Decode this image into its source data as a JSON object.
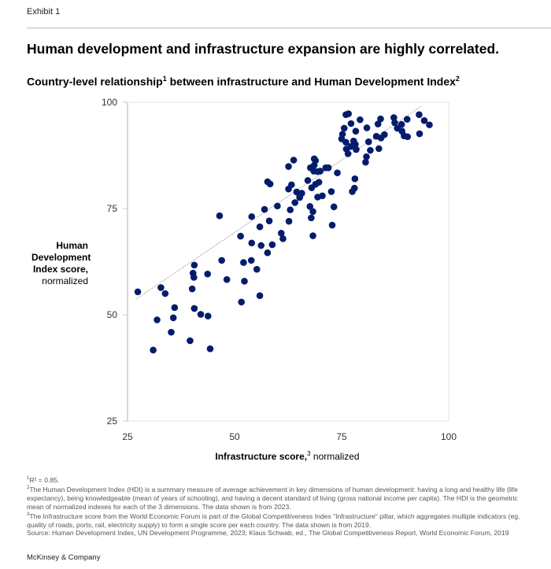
{
  "header": {
    "exhibit": "Exhibit 1",
    "title": "Human development and infrastructure expansion are highly correlated.",
    "subtitle_pre": "Country-level relationship",
    "subtitle_mark1": "1",
    "subtitle_mid": " between infrastructure and Human Development Index",
    "subtitle_mark2": "2"
  },
  "footnotes": {
    "n1_mark": "1",
    "n1": "R² = 0.85.",
    "n2_mark": "2",
    "n2": "The Human Development Index (HDI) is a summary measure of average achievement in key dimensions of human development: having a long and healthy life (life expectancy), being knowledgeable (mean of years of schooling), and having a decent standard of living (gross national income per capita). The HDI is the geometric mean of normalized indexes for each of the 3 dimensions. The data shown is from 2023.",
    "n3_mark": "3",
    "n3": "The Infrastructure score from the World Economic Forum is part of the Global Competitiveness Index \"Infrastructure\" pillar, which aggregates multiple indicators (eg, quality of roads, ports, rail, electricity supply) to form a single score per each country. The data shown is from 2019.",
    "source": "Source: Human Development Index, UN Development Programme, 2023; Klaus Schwab, ed., The Global Competitiveness Report, World Economic Forum, 2019"
  },
  "brand": "McKinsey & Company",
  "chart_data": {
    "type": "scatter",
    "ylabel_bold": "Human Development Index score,",
    "ylabel_rest": "normalized",
    "xlabel_bold": "Infrastructure score,",
    "xlabel_mark": "3",
    "xlabel_rest": " normalized",
    "xlim": [
      25,
      100
    ],
    "ylim": [
      25,
      100
    ],
    "xticks": [
      "25",
      "50",
      "75",
      "100"
    ],
    "yticks": [
      "25",
      "50",
      "75",
      "100"
    ],
    "grid": false,
    "point_color": "#051c6c",
    "trendline_color": "#999999",
    "trendline": [
      [
        27,
        53.7
      ],
      [
        93.5,
        99
      ]
    ],
    "points": [
      [
        27.4,
        55.4
      ],
      [
        46.5,
        73.3
      ],
      [
        54,
        73.1
      ],
      [
        57,
        74.8
      ],
      [
        60,
        75.6
      ],
      [
        63,
        74.7
      ],
      [
        64.1,
        76.4
      ],
      [
        65.2,
        77.6
      ],
      [
        67.6,
        75.5
      ],
      [
        68.3,
        74.3
      ],
      [
        67.9,
        72.8
      ],
      [
        62.7,
        72
      ],
      [
        58.1,
        72.1
      ],
      [
        55.9,
        70.7
      ],
      [
        68.3,
        68.6
      ],
      [
        60.9,
        69.2
      ],
      [
        61.3,
        67.9
      ],
      [
        51.4,
        68.5
      ],
      [
        54,
        66.9
      ],
      [
        56.2,
        66.3
      ],
      [
        58.8,
        66.5
      ],
      [
        57.7,
        64.6
      ],
      [
        47,
        62.8
      ],
      [
        52.1,
        62.3
      ],
      [
        53.9,
        62.8
      ],
      [
        55.2,
        60.7
      ],
      [
        40.6,
        61.7
      ],
      [
        40.3,
        59.8
      ],
      [
        40.5,
        58.8
      ],
      [
        43.7,
        59.6
      ],
      [
        48.2,
        58.3
      ],
      [
        52.3,
        57.9
      ],
      [
        32.8,
        56.4
      ],
      [
        33.8,
        55
      ],
      [
        40.1,
        56.1
      ],
      [
        55.9,
        54.5
      ],
      [
        51.6,
        53
      ],
      [
        36,
        51.7
      ],
      [
        40.6,
        51.5
      ],
      [
        42.1,
        50.1
      ],
      [
        43.8,
        49.7
      ],
      [
        31.9,
        48.8
      ],
      [
        35.7,
        49.3
      ],
      [
        35.2,
        45.9
      ],
      [
        39.6,
        43.9
      ],
      [
        31,
        41.7
      ],
      [
        44.3,
        42
      ],
      [
        76,
        97.1
      ],
      [
        76.6,
        97.3
      ],
      [
        77.2,
        95
      ],
      [
        79.3,
        95.9
      ],
      [
        75.6,
        93.9
      ],
      [
        78.3,
        93.2
      ],
      [
        80.9,
        94
      ],
      [
        75.2,
        92.5
      ],
      [
        75,
        91.4
      ],
      [
        76,
        90.6
      ],
      [
        77.8,
        90.9
      ],
      [
        78.2,
        90.1
      ],
      [
        77.1,
        89.6
      ],
      [
        78.4,
        88.9
      ],
      [
        76.1,
        89
      ],
      [
        76.5,
        87.9
      ],
      [
        81.3,
        90.7
      ],
      [
        81.7,
        88.7
      ],
      [
        83.7,
        89.1
      ],
      [
        83.1,
        92
      ],
      [
        84.2,
        91.6
      ],
      [
        85,
        92.4
      ],
      [
        83.5,
        94.9
      ],
      [
        84.1,
        96.1
      ],
      [
        87.2,
        96.4
      ],
      [
        87.4,
        95.2
      ],
      [
        88,
        93.9
      ],
      [
        89,
        94.8
      ],
      [
        90.3,
        96
      ],
      [
        89.1,
        93.2
      ],
      [
        89.6,
        92.1
      ],
      [
        90.4,
        91.9
      ],
      [
        93.1,
        97.1
      ],
      [
        94.3,
        95.7
      ],
      [
        95.5,
        94.7
      ],
      [
        93.2,
        92.6
      ],
      [
        80.8,
        87.2
      ],
      [
        80.6,
        85.9
      ],
      [
        78.1,
        82
      ],
      [
        78,
        79.8
      ],
      [
        77.5,
        79
      ],
      [
        74,
        83.4
      ],
      [
        71.9,
        84.6
      ],
      [
        71.3,
        84.6
      ],
      [
        70,
        83.8
      ],
      [
        68.6,
        86.7
      ],
      [
        68.9,
        86.3
      ],
      [
        68.6,
        85.2
      ],
      [
        67.7,
        84.6
      ],
      [
        68.5,
        83.8
      ],
      [
        69.4,
        83.7
      ],
      [
        63.8,
        86.4
      ],
      [
        62.6,
        84.9
      ],
      [
        67.1,
        81.6
      ],
      [
        69.7,
        81.2
      ],
      [
        68.9,
        80.7
      ],
      [
        68,
        79.9
      ],
      [
        63.3,
        80.6
      ],
      [
        62.6,
        79.6
      ],
      [
        64.5,
        78.9
      ],
      [
        65.7,
        78.6
      ],
      [
        65.2,
        77.7
      ],
      [
        69.4,
        77.7
      ],
      [
        70.5,
        78
      ],
      [
        72.6,
        79
      ],
      [
        73.2,
        75.4
      ],
      [
        72.8,
        71.1
      ],
      [
        58.3,
        80.8
      ],
      [
        57.7,
        81.3
      ]
    ]
  }
}
